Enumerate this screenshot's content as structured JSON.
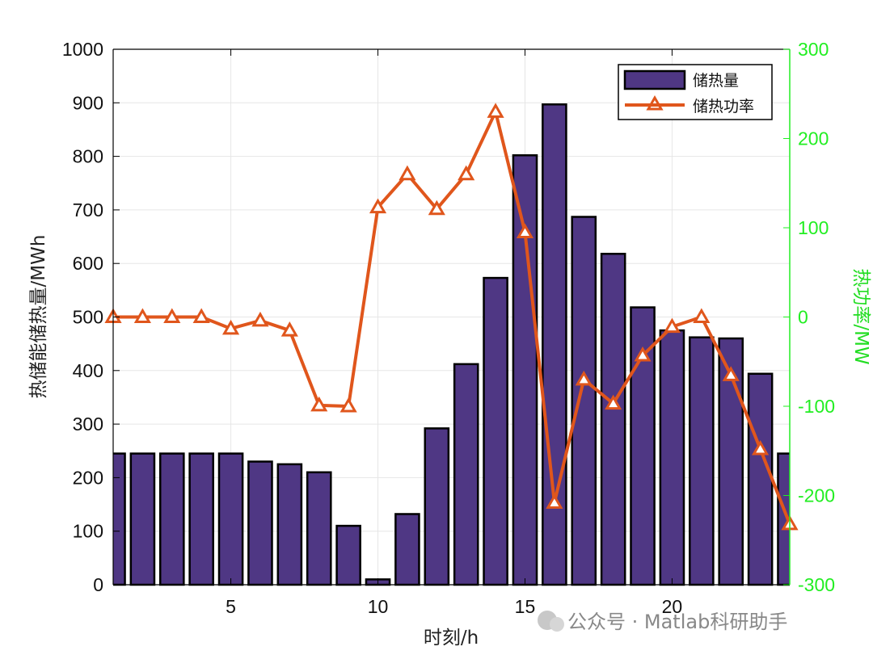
{
  "chart_data": {
    "type": "bar",
    "xlabel": "时刻/h",
    "ylabel": "热储能储热量/MWh",
    "y2label": "热功率/MW",
    "xlim": [
      1,
      24
    ],
    "ylim": [
      0,
      1000
    ],
    "y2lim": [
      -300,
      300
    ],
    "xticks": [
      5,
      10,
      15,
      20
    ],
    "yticks": [
      0,
      100,
      200,
      300,
      400,
      500,
      600,
      700,
      800,
      900,
      1000
    ],
    "y2ticks": [
      -300,
      -200,
      -100,
      0,
      100,
      200,
      300
    ],
    "grid": true,
    "legend_position": "top-right",
    "x": [
      1,
      2,
      3,
      4,
      5,
      6,
      7,
      8,
      9,
      10,
      11,
      12,
      13,
      14,
      15,
      16,
      17,
      18,
      19,
      20,
      21,
      22,
      23,
      24
    ],
    "series": [
      {
        "name": "储热量",
        "type": "bar",
        "axis": "left",
        "color": "#4f3784",
        "values": [
          245,
          245,
          245,
          245,
          245,
          230,
          225,
          210,
          110,
          10,
          132,
          292,
          412,
          573,
          802,
          897,
          687,
          618,
          518,
          475,
          462,
          460,
          394,
          245
        ]
      },
      {
        "name": "储热功率",
        "type": "line",
        "axis": "right",
        "color": "#e0561c",
        "marker": "triangle",
        "values": [
          0,
          0,
          0,
          0,
          -13,
          -4,
          -15,
          -99,
          -100,
          123,
          160,
          121,
          160,
          230,
          95,
          -208,
          -70,
          -97,
          -43,
          -11,
          0,
          -65,
          -148,
          -232
        ]
      }
    ]
  },
  "watermark": {
    "text": "公众号 · Matlab科研助手"
  }
}
